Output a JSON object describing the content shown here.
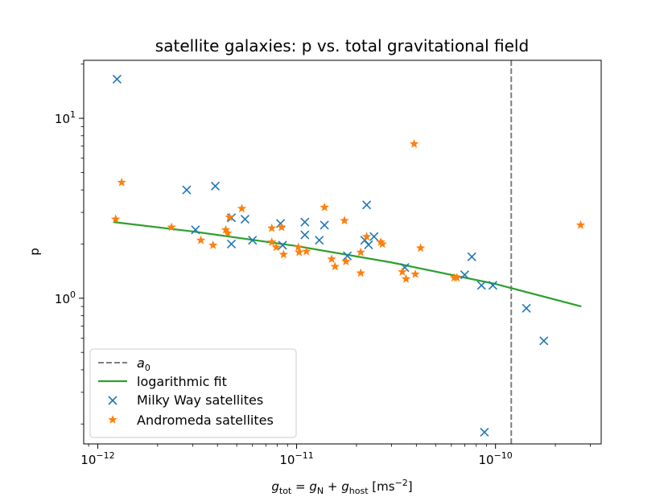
{
  "chart_data": {
    "type": "scatter",
    "title": "satellite galaxies: p vs. total gravitational field",
    "xlabel": "g_tot = g_N + g_host [ms^-2]",
    "ylabel": "p",
    "xscale": "log",
    "yscale": "log",
    "xlim": [
      8.5e-13,
      3.4e-10
    ],
    "ylim": [
      0.155,
      21
    ],
    "xticks": [
      {
        "value": 1e-12,
        "base": "10",
        "exp": "−12"
      },
      {
        "value": 1e-11,
        "base": "10",
        "exp": "−11"
      },
      {
        "value": 1e-10,
        "base": "10",
        "exp": "−10"
      }
    ],
    "yticks": [
      {
        "value": 1,
        "base": "10",
        "exp": "0"
      },
      {
        "value": 10,
        "base": "10",
        "exp": "1"
      }
    ],
    "a0_line": {
      "name": "a0",
      "x": 1.2e-10,
      "color": "#7f7f7f"
    },
    "fit": {
      "name": "logarithmic fit",
      "color": "#2ca02c",
      "x": [
        1.2e-12,
        3e-12,
        1e-11,
        3e-11,
        1e-10,
        2.7e-10
      ],
      "y": [
        2.65,
        2.35,
        1.95,
        1.58,
        1.2,
        0.9
      ]
    },
    "series": [
      {
        "name": "Milky Way satellites",
        "marker": "x",
        "color": "#1f77b4",
        "points": [
          [
            1.25e-12,
            16.5
          ],
          [
            2.8e-12,
            4.0
          ],
          [
            3.9e-12,
            4.2
          ],
          [
            3.1e-12,
            2.4
          ],
          [
            4.7e-12,
            2.8
          ],
          [
            5.5e-12,
            2.75
          ],
          [
            4.7e-12,
            2.0
          ],
          [
            6e-12,
            2.1
          ],
          [
            8.3e-12,
            2.6
          ],
          [
            8.5e-12,
            1.97
          ],
          [
            1.1e-11,
            2.65
          ],
          [
            1.1e-11,
            2.25
          ],
          [
            1.3e-11,
            2.1
          ],
          [
            1.38e-11,
            2.55
          ],
          [
            1.8e-11,
            1.72
          ],
          [
            2.25e-11,
            3.3
          ],
          [
            2.2e-11,
            2.1
          ],
          [
            2.3e-11,
            1.98
          ],
          [
            2.45e-11,
            2.2
          ],
          [
            3.5e-11,
            1.48
          ],
          [
            7e-11,
            1.35
          ],
          [
            7.6e-11,
            1.7
          ],
          [
            8.5e-11,
            1.18
          ],
          [
            9.7e-11,
            1.18
          ],
          [
            1.43e-10,
            0.88
          ],
          [
            1.75e-10,
            0.58
          ],
          [
            8.8e-11,
            0.18
          ]
        ]
      },
      {
        "name": "Andromeda satellites",
        "marker": "star",
        "color": "#ff7f0e",
        "points": [
          [
            1.23e-12,
            2.75
          ],
          [
            1.32e-12,
            4.4
          ],
          [
            2.35e-12,
            2.48
          ],
          [
            3.3e-12,
            2.1
          ],
          [
            3.8e-12,
            1.97
          ],
          [
            4.4e-12,
            2.4
          ],
          [
            4.6e-12,
            2.82
          ],
          [
            4.5e-12,
            2.3
          ],
          [
            5.3e-12,
            3.15
          ],
          [
            7.5e-12,
            2.45
          ],
          [
            7.5e-12,
            2.05
          ],
          [
            8.4e-12,
            2.48
          ],
          [
            7.9e-12,
            1.92
          ],
          [
            8.6e-12,
            1.75
          ],
          [
            1.02e-11,
            1.92
          ],
          [
            1.03e-11,
            1.8
          ],
          [
            1.12e-11,
            1.82
          ],
          [
            1.38e-11,
            3.2
          ],
          [
            1.5e-11,
            1.65
          ],
          [
            1.56e-11,
            1.5
          ],
          [
            1.74e-11,
            2.7
          ],
          [
            1.77e-11,
            1.6
          ],
          [
            2.1e-11,
            1.38
          ],
          [
            2.1e-11,
            1.8
          ],
          [
            2.25e-11,
            2.2
          ],
          [
            2.65e-11,
            2.05
          ],
          [
            2.7e-11,
            2.0
          ],
          [
            3.4e-11,
            1.4
          ],
          [
            3.55e-11,
            1.28
          ],
          [
            3.9e-11,
            7.2
          ],
          [
            3.95e-11,
            1.36
          ],
          [
            4.2e-11,
            1.9
          ],
          [
            6.2e-11,
            1.3
          ],
          [
            6.4e-11,
            1.3
          ],
          [
            2.68e-10,
            2.55
          ]
        ]
      }
    ],
    "legend": {
      "position": "lower-left",
      "entries": [
        {
          "label_base": "a",
          "label_sub": "0",
          "type": "dashed-line",
          "color": "#7f7f7f"
        },
        {
          "label": "logarithmic fit",
          "type": "line",
          "color": "#2ca02c"
        },
        {
          "label": "Milky Way satellites",
          "type": "x",
          "color": "#1f77b4"
        },
        {
          "label": "Andromeda satellites",
          "type": "star",
          "color": "#ff7f0e"
        }
      ]
    },
    "axis_text": {
      "y": "p",
      "x_g": "g",
      "x_tot": "tot",
      "x_eq": " = ",
      "x_gN": "g",
      "x_N": "N",
      "x_plus": " + ",
      "x_gh": "g",
      "x_host": "host",
      "x_unit_open": " [ms",
      "x_unit_exp": "−2",
      "x_unit_close": "]"
    }
  }
}
